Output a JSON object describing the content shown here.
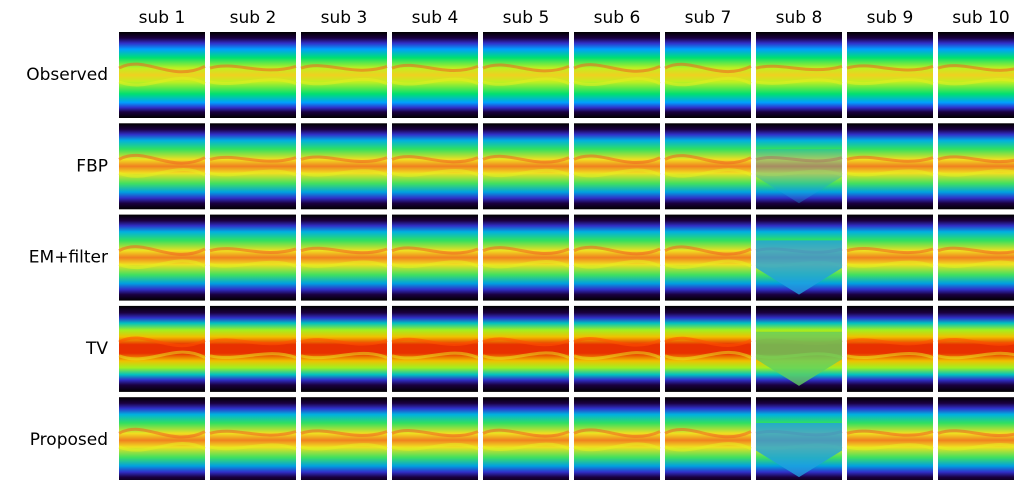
{
  "columns": [
    "sub 1",
    "sub 2",
    "sub 3",
    "sub 4",
    "sub 5",
    "sub 6",
    "sub 7",
    "sub 8",
    "sub 9",
    "sub 10"
  ],
  "rows": [
    "Observed",
    "FBP",
    "EM+filter",
    "TV",
    "Proposed"
  ]
}
